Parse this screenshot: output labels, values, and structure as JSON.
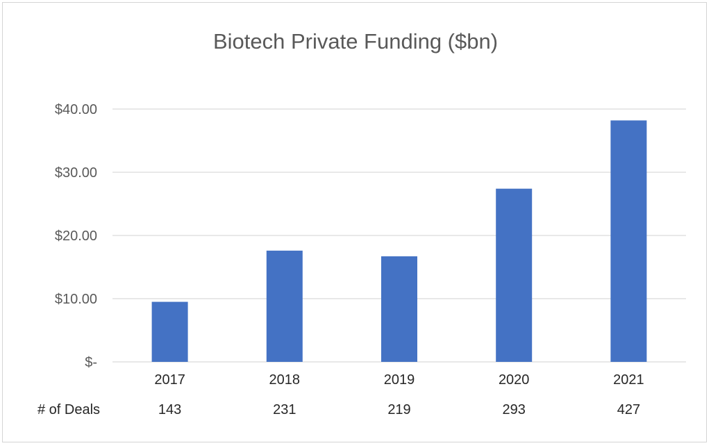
{
  "chart_data": {
    "type": "bar",
    "title": "Biotech Private Funding ($bn)",
    "categories": [
      "2017",
      "2018",
      "2019",
      "2020",
      "2021"
    ],
    "values": [
      9.5,
      17.6,
      16.7,
      27.4,
      38.2
    ],
    "ylim": [
      0,
      40
    ],
    "yticks": [
      {
        "value": 0,
        "label": "$-"
      },
      {
        "value": 10,
        "label": "$10.00"
      },
      {
        "value": 20,
        "label": "$20.00"
      },
      {
        "value": 30,
        "label": "$30.00"
      },
      {
        "value": 40,
        "label": "$40.00"
      }
    ],
    "grid": true,
    "legend": "none",
    "bar_color": "#4472c4",
    "deals": {
      "label": "# of Deals",
      "values": [
        "143",
        "231",
        "219",
        "293",
        "427"
      ]
    }
  }
}
